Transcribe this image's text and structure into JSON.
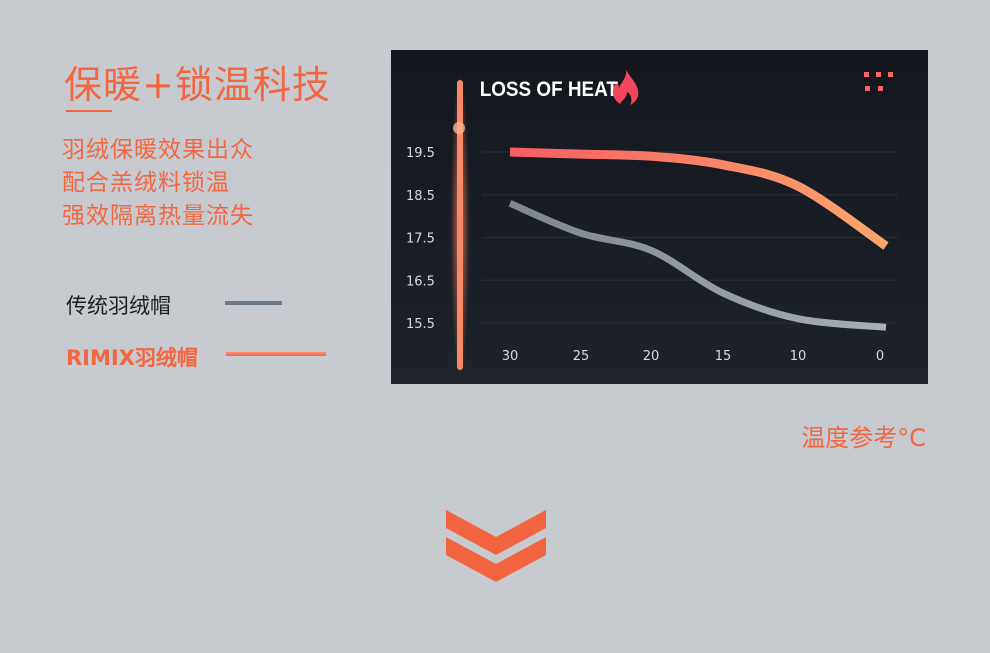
{
  "headline": "保暖+锁温科技",
  "subtitle_lines": [
    "羽绒保暖效果出众",
    "配合羔绒料锁温",
    "强效隔离热量流失"
  ],
  "colors": {
    "accent": "#f26640",
    "panel": "#181c24",
    "traditional": "#8a929b",
    "rimix_start": "#f75d63",
    "rimix_end": "#fca56c"
  },
  "icons": {
    "title_icon": "flame-icon",
    "corner_icon": "dot-grid-icon",
    "bottom_icon": "double-chevron-down-icon"
  },
  "chart_data": {
    "type": "line",
    "title": "LOSS OF HEAT",
    "xlabel": "温度参考°C",
    "ylabel": "",
    "categories": [
      "30",
      "25",
      "20",
      "15",
      "10",
      "0"
    ],
    "y_ticks": [
      "19.5",
      "18.5",
      "17.5",
      "16.5",
      "15.5"
    ],
    "ylim": [
      15.0,
      20.0
    ],
    "grid": true,
    "legend_placement": "left-outside",
    "series": [
      {
        "name": "传统羽绒帽",
        "color": "#8a929b",
        "values": [
          18.3,
          17.6,
          17.2,
          16.2,
          15.6,
          15.4
        ]
      },
      {
        "name": "RIMIX羽绒帽",
        "color": "#f86a62",
        "values": [
          19.5,
          19.45,
          19.4,
          19.2,
          18.7,
          17.3
        ]
      }
    ]
  }
}
